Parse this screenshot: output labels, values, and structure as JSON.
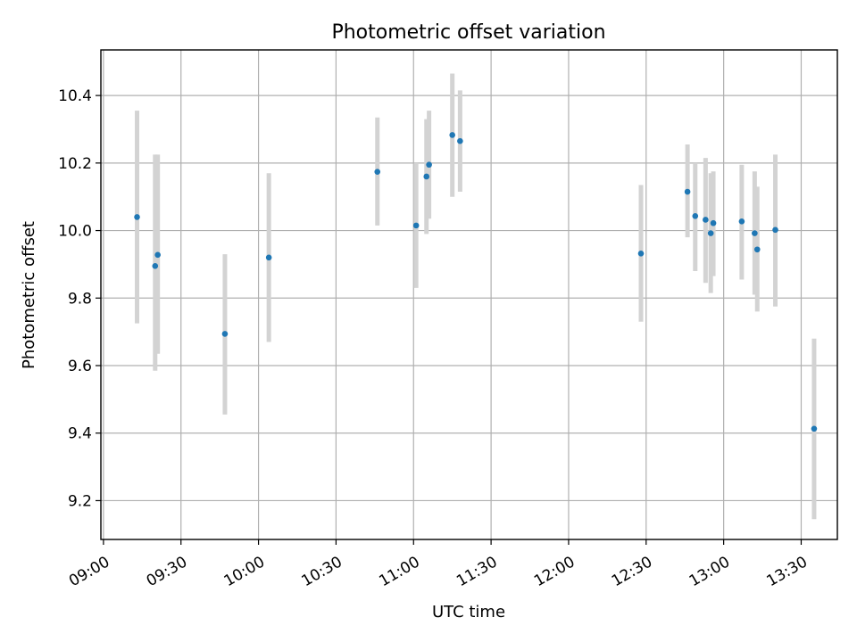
{
  "chart_data": {
    "type": "scatter",
    "title": "Photometric offset variation",
    "xlabel": "UTC time",
    "ylabel": "Photometric offset",
    "x_ticks": [
      "09:00",
      "09:30",
      "10:00",
      "10:30",
      "11:00",
      "11:30",
      "12:00",
      "12:30",
      "13:00",
      "13:30"
    ],
    "y_ticks": [
      "9.2",
      "9.4",
      "9.6",
      "9.8",
      "10.0",
      "10.2",
      "10.4"
    ],
    "xlim": [
      "08:59",
      "13:44"
    ],
    "ylim": [
      9.085,
      10.535
    ],
    "grid": true,
    "colors": {
      "point": "#1f77b4",
      "errorbar": "#d3d3d3"
    },
    "points": [
      {
        "time": "09:13",
        "y": 10.04,
        "err_low": 9.725,
        "err_high": 10.355
      },
      {
        "time": "09:20",
        "y": 9.895,
        "err_low": 9.585,
        "err_high": 10.225
      },
      {
        "time": "09:21",
        "y": 9.928,
        "err_low": 9.635,
        "err_high": 10.225
      },
      {
        "time": "09:47",
        "y": 9.694,
        "err_low": 9.455,
        "err_high": 9.93
      },
      {
        "time": "10:04",
        "y": 9.92,
        "err_low": 9.67,
        "err_high": 10.17
      },
      {
        "time": "10:46",
        "y": 10.174,
        "err_low": 10.015,
        "err_high": 10.335
      },
      {
        "time": "11:01",
        "y": 10.015,
        "err_low": 9.83,
        "err_high": 10.2
      },
      {
        "time": "11:05",
        "y": 10.16,
        "err_low": 9.99,
        "err_high": 10.33
      },
      {
        "time": "11:06",
        "y": 10.195,
        "err_low": 10.035,
        "err_high": 10.355
      },
      {
        "time": "11:15",
        "y": 10.283,
        "err_low": 10.1,
        "err_high": 10.465
      },
      {
        "time": "11:18",
        "y": 10.265,
        "err_low": 10.115,
        "err_high": 10.415
      },
      {
        "time": "12:28",
        "y": 9.932,
        "err_low": 9.73,
        "err_high": 10.135
      },
      {
        "time": "12:46",
        "y": 10.115,
        "err_low": 9.98,
        "err_high": 10.255
      },
      {
        "time": "12:49",
        "y": 10.043,
        "err_low": 9.88,
        "err_high": 10.2
      },
      {
        "time": "12:53",
        "y": 10.032,
        "err_low": 9.845,
        "err_high": 10.215
      },
      {
        "time": "12:55",
        "y": 9.992,
        "err_low": 9.815,
        "err_high": 10.17
      },
      {
        "time": "12:56",
        "y": 10.022,
        "err_low": 9.865,
        "err_high": 10.175
      },
      {
        "time": "13:07",
        "y": 10.027,
        "err_low": 9.855,
        "err_high": 10.195
      },
      {
        "time": "13:12",
        "y": 9.992,
        "err_low": 9.81,
        "err_high": 10.175
      },
      {
        "time": "13:13",
        "y": 9.944,
        "err_low": 9.76,
        "err_high": 10.13
      },
      {
        "time": "13:20",
        "y": 10.002,
        "err_low": 9.775,
        "err_high": 10.225
      },
      {
        "time": "13:35",
        "y": 9.413,
        "err_low": 9.145,
        "err_high": 9.68
      }
    ]
  }
}
